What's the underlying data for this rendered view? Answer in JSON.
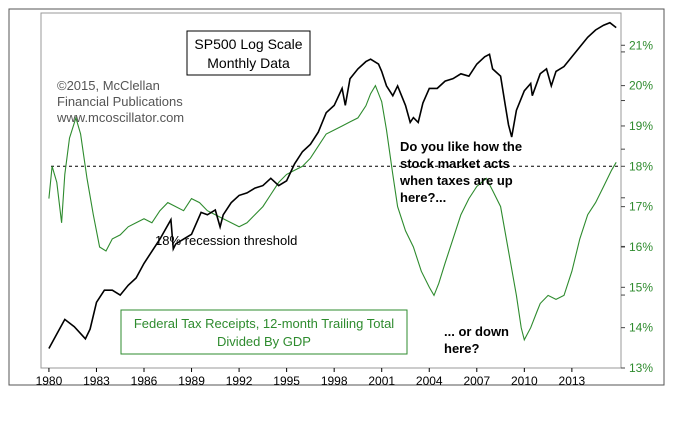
{
  "chart_data": {
    "type": "line",
    "title": "SP500 Log Scale",
    "subtitle": "Monthly Data",
    "copyright_lines": [
      "©2015, McClellan",
      "Financial Publications",
      "www.mcoscillator.com"
    ],
    "x_ticks": [
      "1980",
      "1983",
      "1986",
      "1989",
      "1992",
      "1995",
      "1998",
      "2001",
      "2004",
      "2007",
      "2010",
      "2013"
    ],
    "xlim": [
      1979.5,
      2016.1
    ],
    "right_axis": {
      "ticks": [
        "21%",
        "20%",
        "19%",
        "18%",
        "17%",
        "16%",
        "15%",
        "14%",
        "13%"
      ],
      "tick_values": [
        21,
        20,
        19,
        18,
        17,
        16,
        15,
        14,
        13
      ],
      "ylim": [
        13,
        21.8
      ],
      "color": "#2e8b2e"
    },
    "sp500_log_scale": {
      "ylim": [
        1.9,
        3.36
      ],
      "minor_tick_values": [
        2.2,
        2.4,
        2.6,
        2.8,
        3.0,
        3.2
      ],
      "series": [
        {
          "name": "SP500 (log10 of index)",
          "color": "#000000",
          "points": [
            [
              1980,
              1.98
            ],
            [
              1980.5,
              2.04
            ],
            [
              1981,
              2.1
            ],
            [
              1981.6,
              2.07
            ],
            [
              1982.3,
              2.02
            ],
            [
              1982.6,
              2.06
            ],
            [
              1983,
              2.17
            ],
            [
              1983.5,
              2.22
            ],
            [
              1984,
              2.22
            ],
            [
              1984.5,
              2.2
            ],
            [
              1985,
              2.24
            ],
            [
              1985.5,
              2.27
            ],
            [
              1986,
              2.33
            ],
            [
              1986.5,
              2.38
            ],
            [
              1987,
              2.43
            ],
            [
              1987.7,
              2.51
            ],
            [
              1987.85,
              2.39
            ],
            [
              1988,
              2.41
            ],
            [
              1988.5,
              2.43
            ],
            [
              1989,
              2.45
            ],
            [
              1989.6,
              2.54
            ],
            [
              1990,
              2.53
            ],
            [
              1990.5,
              2.55
            ],
            [
              1990.8,
              2.48
            ],
            [
              1991,
              2.53
            ],
            [
              1991.5,
              2.58
            ],
            [
              1992,
              2.61
            ],
            [
              1992.5,
              2.62
            ],
            [
              1993,
              2.64
            ],
            [
              1993.5,
              2.65
            ],
            [
              1994,
              2.68
            ],
            [
              1994.5,
              2.65
            ],
            [
              1995,
              2.67
            ],
            [
              1995.5,
              2.74
            ],
            [
              1996,
              2.79
            ],
            [
              1996.5,
              2.82
            ],
            [
              1997,
              2.87
            ],
            [
              1997.5,
              2.95
            ],
            [
              1998,
              2.98
            ],
            [
              1998.5,
              3.05
            ],
            [
              1998.7,
              2.98
            ],
            [
              1999,
              3.09
            ],
            [
              1999.5,
              3.13
            ],
            [
              2000,
              3.16
            ],
            [
              2000.3,
              3.17
            ],
            [
              2000.8,
              3.15
            ],
            [
              2001,
              3.12
            ],
            [
              2001.3,
              3.06
            ],
            [
              2001.7,
              3.02
            ],
            [
              2002,
              3.06
            ],
            [
              2002.5,
              2.98
            ],
            [
              2002.8,
              2.91
            ],
            [
              2003,
              2.93
            ],
            [
              2003.3,
              2.91
            ],
            [
              2003.6,
              2.99
            ],
            [
              2004,
              3.05
            ],
            [
              2004.5,
              3.05
            ],
            [
              2005,
              3.08
            ],
            [
              2005.5,
              3.09
            ],
            [
              2006,
              3.11
            ],
            [
              2006.5,
              3.1
            ],
            [
              2007,
              3.15
            ],
            [
              2007.5,
              3.18
            ],
            [
              2007.8,
              3.19
            ],
            [
              2008,
              3.13
            ],
            [
              2008.5,
              3.1
            ],
            [
              2008.8,
              2.98
            ],
            [
              2009,
              2.9
            ],
            [
              2009.2,
              2.85
            ],
            [
              2009.5,
              2.96
            ],
            [
              2010,
              3.04
            ],
            [
              2010.4,
              3.07
            ],
            [
              2010.5,
              3.02
            ],
            [
              2011,
              3.11
            ],
            [
              2011.4,
              3.13
            ],
            [
              2011.7,
              3.06
            ],
            [
              2012,
              3.12
            ],
            [
              2012.5,
              3.14
            ],
            [
              2013,
              3.18
            ],
            [
              2013.5,
              3.22
            ],
            [
              2014,
              3.26
            ],
            [
              2014.5,
              3.29
            ],
            [
              2015,
              3.31
            ],
            [
              2015.4,
              3.32
            ],
            [
              2015.8,
              3.3
            ]
          ]
        }
      ]
    },
    "tax_receipts": {
      "series": [
        {
          "name": "Federal Tax Receipts, 12-month Trailing Total Divided By GDP",
          "unit": "%",
          "color": "#2e8b2e",
          "points": [
            [
              1980,
              17.2
            ],
            [
              1980.2,
              18.0
            ],
            [
              1980.5,
              17.6
            ],
            [
              1980.8,
              16.6
            ],
            [
              1981,
              17.8
            ],
            [
              1981.3,
              18.7
            ],
            [
              1981.7,
              19.2
            ],
            [
              1982,
              18.8
            ],
            [
              1982.4,
              17.7
            ],
            [
              1982.8,
              16.8
            ],
            [
              1983.2,
              16.0
            ],
            [
              1983.6,
              15.9
            ],
            [
              1984,
              16.2
            ],
            [
              1984.5,
              16.3
            ],
            [
              1985,
              16.5
            ],
            [
              1985.5,
              16.6
            ],
            [
              1986,
              16.7
            ],
            [
              1986.5,
              16.6
            ],
            [
              1987,
              16.9
            ],
            [
              1987.5,
              17.1
            ],
            [
              1988,
              17.0
            ],
            [
              1988.5,
              16.9
            ],
            [
              1989,
              17.2
            ],
            [
              1989.5,
              17.1
            ],
            [
              1990,
              16.9
            ],
            [
              1990.5,
              16.8
            ],
            [
              1991,
              16.7
            ],
            [
              1991.5,
              16.6
            ],
            [
              1992,
              16.5
            ],
            [
              1992.5,
              16.6
            ],
            [
              1993,
              16.8
            ],
            [
              1993.5,
              17.0
            ],
            [
              1994,
              17.3
            ],
            [
              1994.5,
              17.6
            ],
            [
              1995,
              17.8
            ],
            [
              1995.5,
              17.9
            ],
            [
              1996,
              18.0
            ],
            [
              1996.5,
              18.2
            ],
            [
              1997,
              18.5
            ],
            [
              1997.5,
              18.8
            ],
            [
              1998,
              18.9
            ],
            [
              1998.5,
              19.0
            ],
            [
              1999,
              19.1
            ],
            [
              1999.5,
              19.2
            ],
            [
              2000,
              19.5
            ],
            [
              2000.3,
              19.8
            ],
            [
              2000.6,
              20.0
            ],
            [
              2001,
              19.6
            ],
            [
              2001.3,
              18.9
            ],
            [
              2001.7,
              17.8
            ],
            [
              2002,
              17.0
            ],
            [
              2002.5,
              16.4
            ],
            [
              2003,
              16.0
            ],
            [
              2003.5,
              15.4
            ],
            [
              2004,
              15.0
            ],
            [
              2004.3,
              14.8
            ],
            [
              2004.6,
              15.1
            ],
            [
              2005,
              15.6
            ],
            [
              2005.5,
              16.2
            ],
            [
              2006,
              16.8
            ],
            [
              2006.5,
              17.2
            ],
            [
              2007,
              17.5
            ],
            [
              2007.3,
              17.6
            ],
            [
              2007.6,
              17.7
            ],
            [
              2008,
              17.4
            ],
            [
              2008.5,
              17.0
            ],
            [
              2009,
              15.9
            ],
            [
              2009.5,
              14.8
            ],
            [
              2009.8,
              14.0
            ],
            [
              2010,
              13.7
            ],
            [
              2010.4,
              14.0
            ],
            [
              2010.8,
              14.4
            ],
            [
              2011,
              14.6
            ],
            [
              2011.5,
              14.8
            ],
            [
              2012,
              14.7
            ],
            [
              2012.5,
              14.8
            ],
            [
              2013,
              15.4
            ],
            [
              2013.5,
              16.2
            ],
            [
              2014,
              16.8
            ],
            [
              2014.5,
              17.1
            ],
            [
              2015,
              17.5
            ],
            [
              2015.5,
              17.9
            ],
            [
              2015.8,
              18.1
            ]
          ]
        }
      ],
      "threshold": {
        "value": 18,
        "label": "18% recession threshold"
      }
    },
    "annotations": {
      "question_upper": [
        "Do you like how the",
        "stock market acts",
        "when taxes are up",
        "here?..."
      ],
      "question_lower": [
        "... or down",
        "here?"
      ]
    },
    "legend_box": [
      "Federal Tax Receipts, 12-month Trailing Total",
      "Divided By GDP"
    ]
  }
}
